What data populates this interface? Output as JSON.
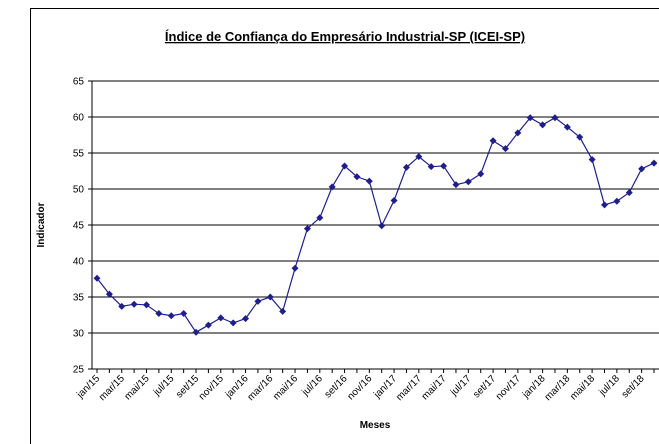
{
  "chart_data": {
    "type": "line",
    "title": "Índice de Confiança do Empresário Industrial-SP (ICEI-SP)",
    "x_label": "Meses",
    "y_label": "Indicador",
    "categories": [
      "jan/15",
      null,
      "mar/15",
      null,
      "mai/15",
      null,
      "jul/15",
      null,
      "set/15",
      null,
      "nov/15",
      null,
      "jan/16",
      null,
      "mar/16",
      null,
      "mai/16",
      null,
      "jul/16",
      null,
      "set/16",
      null,
      "nov/16",
      null,
      "jan/17",
      null,
      "mar/17",
      null,
      "mai/17",
      null,
      "jul/17",
      null,
      "set/17",
      null,
      "nov/17",
      null,
      "jan/18",
      null,
      "mar/18",
      null,
      "mai/18",
      null,
      "jul/18",
      null,
      "set/18",
      null
    ],
    "series": [
      {
        "name": "ICEI-SP",
        "color": "#1f1f8c",
        "values": [
          37.6,
          35.4,
          33.7,
          34.0,
          33.9,
          32.7,
          32.4,
          32.7,
          30.1,
          31.1,
          32.1,
          31.4,
          32.0,
          34.4,
          35.0,
          33.0,
          39.0,
          44.5,
          46.0,
          50.3,
          53.2,
          51.7,
          51.1,
          44.9,
          48.4,
          53.0,
          54.5,
          53.1,
          53.2,
          50.6,
          51.0,
          52.1,
          56.7,
          55.6,
          57.8,
          59.9,
          58.9,
          59.9,
          58.6,
          57.2,
          54.1,
          47.8,
          48.3,
          49.5,
          52.8,
          53.6
        ]
      }
    ],
    "ylim": [
      25,
      65
    ],
    "yticks": [
      25,
      30,
      35,
      40,
      45,
      50,
      55,
      60,
      65
    ],
    "grid": true
  }
}
